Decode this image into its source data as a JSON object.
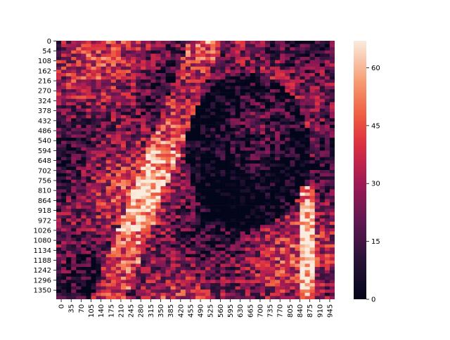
{
  "chart_data": {
    "type": "heatmap",
    "title": "",
    "xlabel": "",
    "ylabel": "",
    "colormap": "rocket",
    "grid": false,
    "x_ticks": [
      "0",
      "35",
      "70",
      "105",
      "140",
      "175",
      "210",
      "245",
      "280",
      "315",
      "350",
      "385",
      "420",
      "455",
      "490",
      "525",
      "560",
      "595",
      "630",
      "665",
      "700",
      "735",
      "770",
      "805",
      "840",
      "875",
      "910",
      "945"
    ],
    "y_ticks": [
      "0",
      "54",
      "108",
      "162",
      "216",
      "270",
      "324",
      "378",
      "432",
      "486",
      "540",
      "594",
      "648",
      "702",
      "756",
      "810",
      "864",
      "918",
      "972",
      "1026",
      "1080",
      "1134",
      "1188",
      "1242",
      "1296",
      "1350"
    ],
    "x_range": [
      0,
      980
    ],
    "y_range": [
      0,
      1400
    ],
    "colorbar": {
      "ticks": [
        "0",
        "15",
        "30",
        "45",
        "60"
      ],
      "tick_values": [
        0,
        15,
        30,
        45,
        60
      ],
      "vmin": 0,
      "vmax": 67
    },
    "image_description_values": {
      "grid_cols": 28,
      "grid_rows": 40,
      "value_range": [
        0,
        67
      ]
    }
  }
}
